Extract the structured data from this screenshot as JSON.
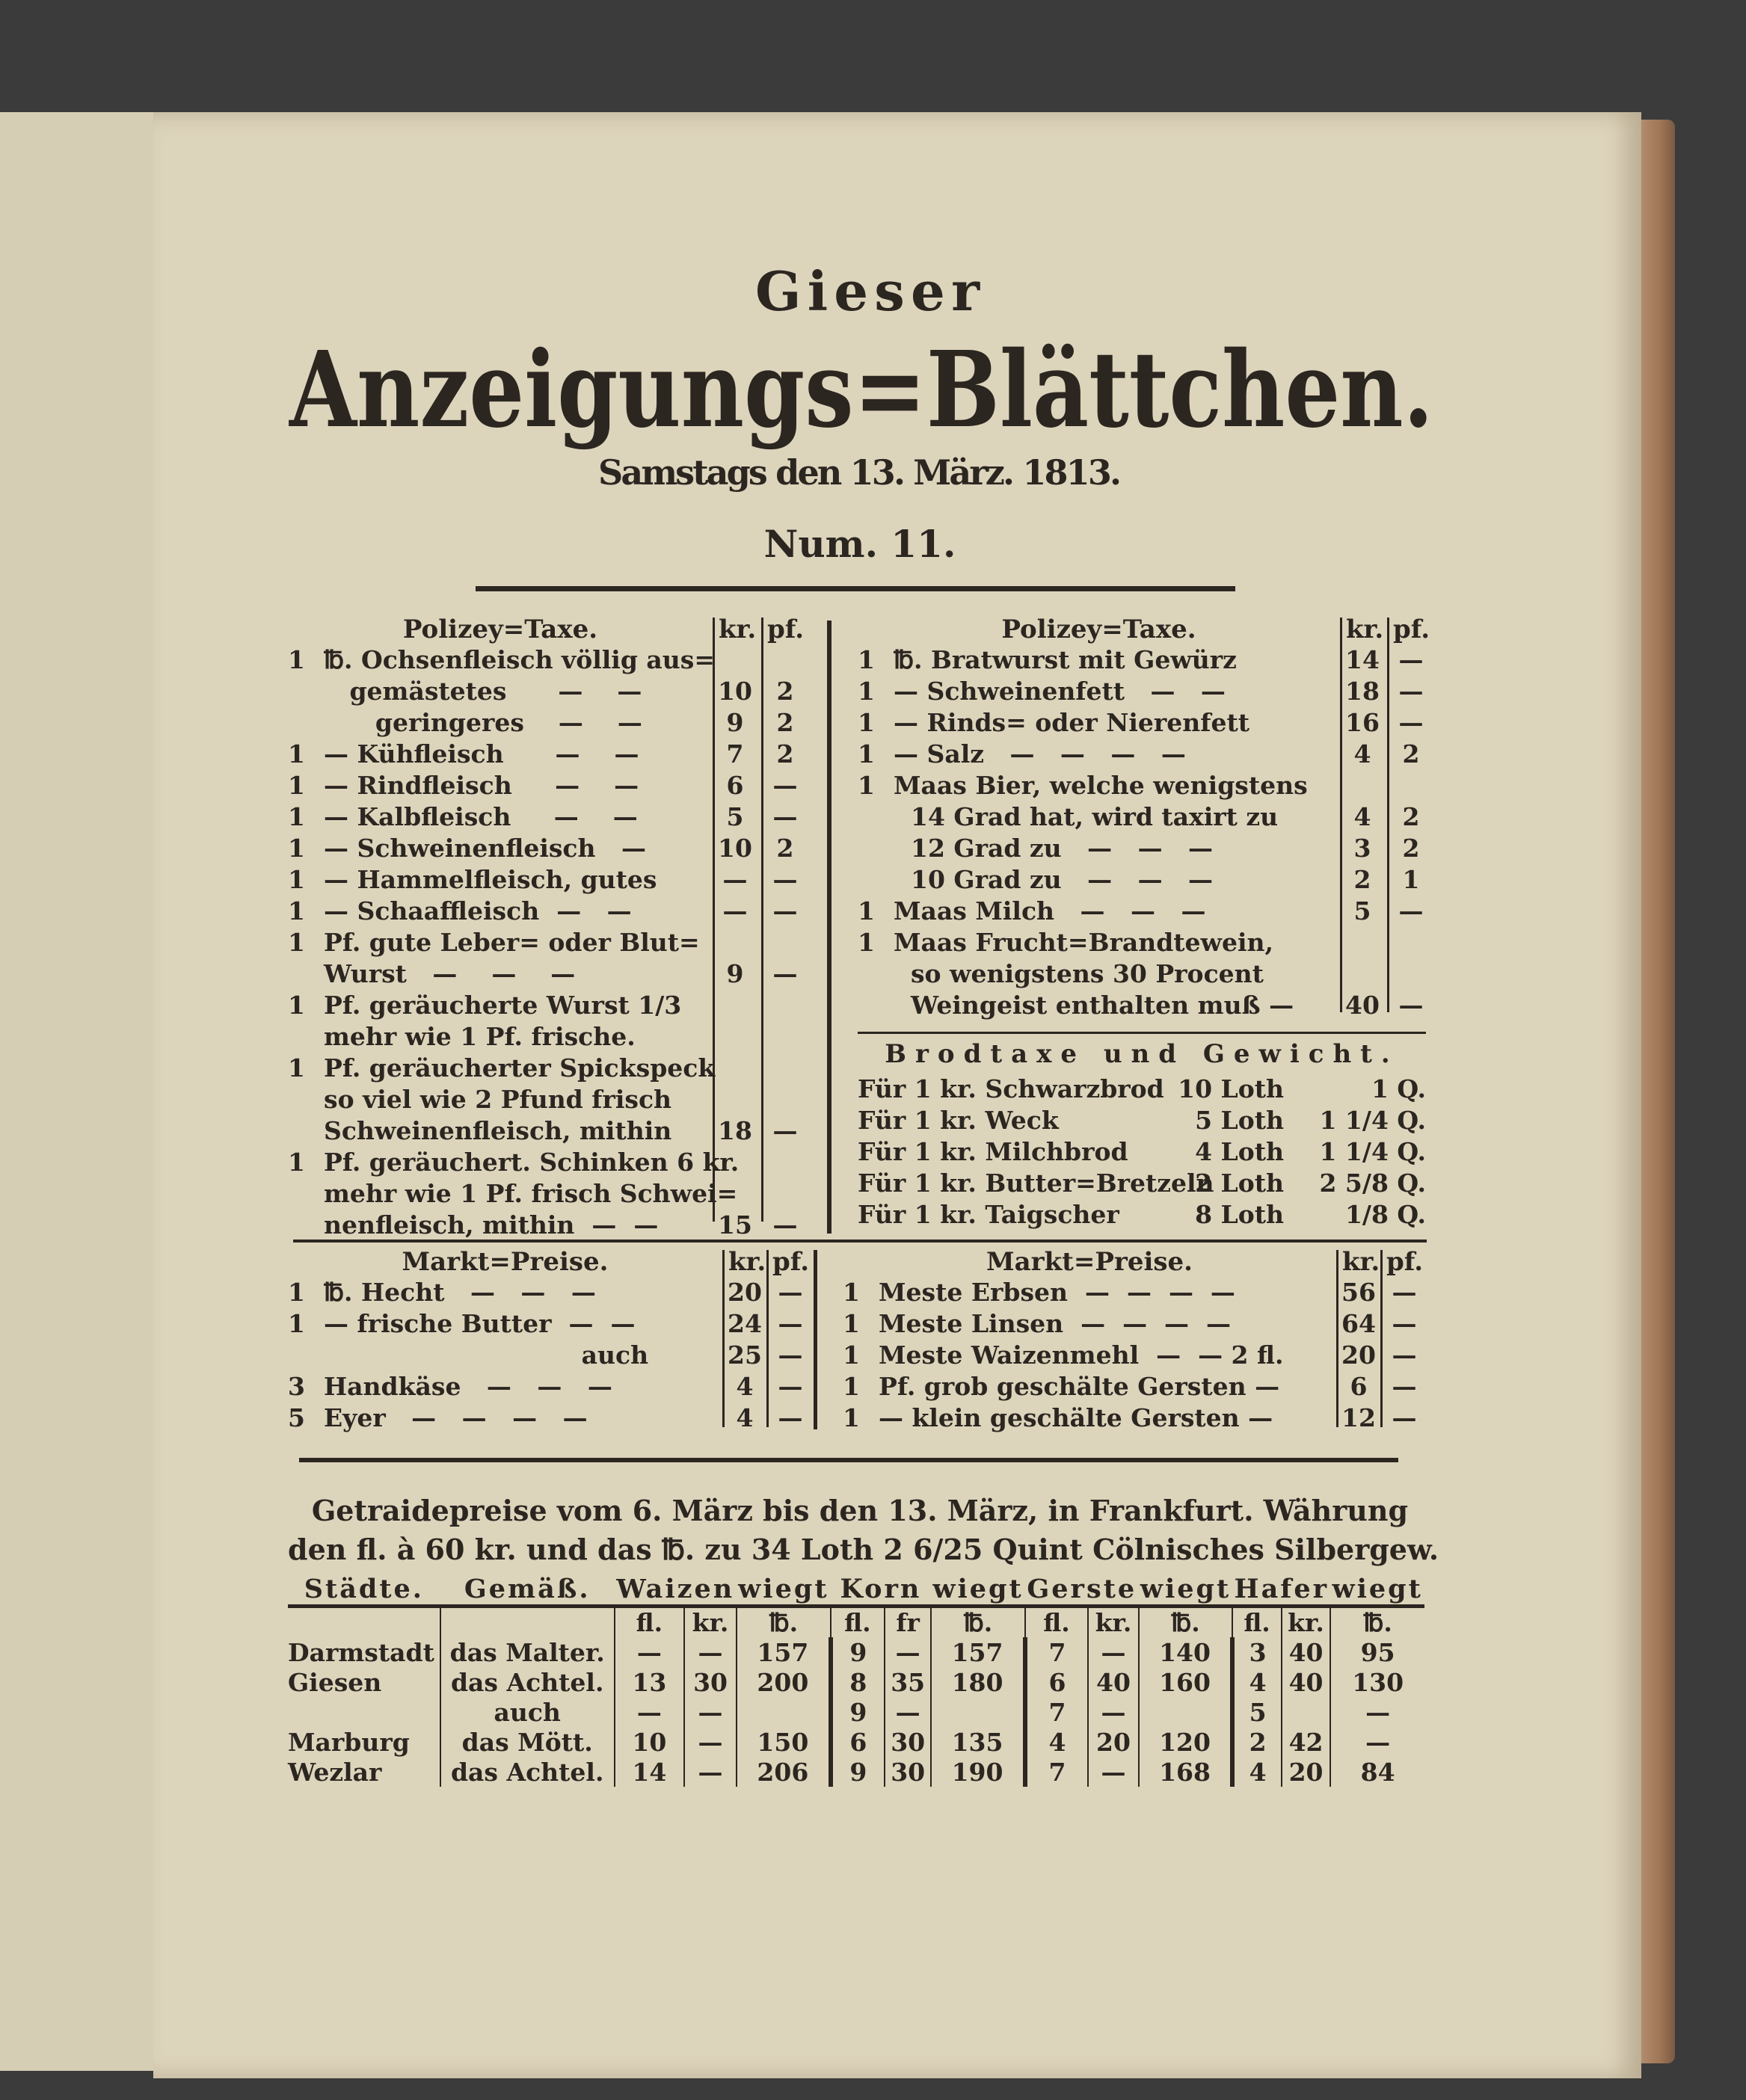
{
  "masthead": {
    "line1": "Gieser",
    "line2": "Anzeigungs=Blättchen.",
    "date": "Samstags den 13. März. 1813.",
    "number": "Num. 11."
  },
  "polizey_left": {
    "title": "Polizey=Taxe.",
    "col_kr": "kr.",
    "col_pf": "pf.",
    "rows": [
      {
        "q": "1",
        "t": "℔. Ochsenfleisch völlig aus=",
        "kr": "",
        "pf": ""
      },
      {
        "q": "",
        "t": "   gemästetes      —    —",
        "kr": "10",
        "pf": "2"
      },
      {
        "q": "",
        "t": "      geringeres    —    —",
        "kr": "9",
        "pf": "2"
      },
      {
        "q": "1",
        "t": "— Kühfleisch      —    —",
        "kr": "7",
        "pf": "2"
      },
      {
        "q": "1",
        "t": "— Rindfleisch     —    —",
        "kr": "6",
        "pf": "—"
      },
      {
        "q": "1",
        "t": "— Kalbfleisch     —    —",
        "kr": "5",
        "pf": "—"
      },
      {
        "q": "1",
        "t": "— Schweinenfleisch   —",
        "kr": "10",
        "pf": "2"
      },
      {
        "q": "1",
        "t": "— Hammelfleisch, gutes",
        "kr": "—",
        "pf": "—"
      },
      {
        "q": "1",
        "t": "— Schaaffleisch  —   —",
        "kr": "—",
        "pf": "—"
      },
      {
        "q": "1",
        "t": "Pf. gute Leber= oder Blut=",
        "kr": "",
        "pf": ""
      },
      {
        "q": "",
        "t": "Wurst   —    —    —",
        "kr": "9",
        "pf": "—"
      },
      {
        "q": "1",
        "t": "Pf. geräucherte Wurst 1/3",
        "kr": "",
        "pf": ""
      },
      {
        "q": "",
        "t": "mehr wie 1 Pf. frische.",
        "kr": "",
        "pf": ""
      },
      {
        "q": "1",
        "t": "Pf. geräucherter Spickspeck",
        "kr": "",
        "pf": ""
      },
      {
        "q": "",
        "t": "so viel wie 2 Pfund frisch",
        "kr": "",
        "pf": ""
      },
      {
        "q": "",
        "t": "Schweinenfleisch, mithin",
        "kr": "18",
        "pf": "—"
      },
      {
        "q": "1",
        "t": "Pf. geräuchert. Schinken 6 kr.",
        "kr": "",
        "pf": ""
      },
      {
        "q": "",
        "t": "mehr wie 1 Pf. frisch Schwei=",
        "kr": "",
        "pf": ""
      },
      {
        "q": "",
        "t": "nenfleisch, mithin  —  —",
        "kr": "15",
        "pf": "—"
      }
    ]
  },
  "polizey_right": {
    "title": "Polizey=Taxe.",
    "col_kr": "kr.",
    "col_pf": "pf.",
    "rows": [
      {
        "q": "1",
        "t": "℔. Bratwurst mit Gewürz",
        "kr": "14",
        "pf": "—"
      },
      {
        "q": "1",
        "t": "— Schweinenfett   —   —",
        "kr": "18",
        "pf": "—"
      },
      {
        "q": "1",
        "t": "— Rinds= oder Nierenfett",
        "kr": "16",
        "pf": "—"
      },
      {
        "q": "1",
        "t": "— Salz   —   —   —   —",
        "kr": "4",
        "pf": "2"
      },
      {
        "q": "1",
        "t": "Maas Bier, welche wenigstens",
        "kr": "",
        "pf": ""
      },
      {
        "q": "",
        "t": "  14 Grad hat, wird taxirt zu",
        "kr": "4",
        "pf": "2"
      },
      {
        "q": "",
        "t": "  12 Grad zu   —   —   —",
        "kr": "3",
        "pf": "2"
      },
      {
        "q": "",
        "t": "  10 Grad zu   —   —   —",
        "kr": "2",
        "pf": "1"
      },
      {
        "q": "1",
        "t": "Maas Milch   —   —   —",
        "kr": "5",
        "pf": "—"
      },
      {
        "q": "1",
        "t": "Maas Frucht=Brandtewein,",
        "kr": "",
        "pf": ""
      },
      {
        "q": "",
        "t": "  so wenigstens 30 Procent",
        "kr": "",
        "pf": ""
      },
      {
        "q": "",
        "t": "  Weingeist enthalten muß —",
        "kr": "40",
        "pf": "—"
      }
    ]
  },
  "brodtaxe": {
    "title": "Brodtaxe und Gewicht.",
    "rows": [
      {
        "t": "Für 1 kr. Schwarzbrod",
        "loth": "10 Loth",
        "q": "1 Q."
      },
      {
        "t": "Für 1 kr. Weck",
        "loth": "5 Loth",
        "q": "1 1/4 Q."
      },
      {
        "t": "Für 1 kr. Milchbrod",
        "loth": "4 Loth",
        "q": "1 1/4 Q."
      },
      {
        "t": "Für 1 kr. Butter=Bretzeln",
        "loth": "2 Loth",
        "q": "2 5/8 Q."
      },
      {
        "t": "Für 1 kr. Taigscher",
        "loth": "8 Loth",
        "q": "1/8 Q."
      }
    ]
  },
  "markt_left": {
    "title": "Markt=Preise.",
    "col_kr": "kr.",
    "col_pf": "pf.",
    "rows": [
      {
        "q": "1",
        "t": "℔. Hecht   —   —   —",
        "kr": "20",
        "pf": "—"
      },
      {
        "q": "1",
        "t": "— frische Butter  —  —",
        "kr": "24",
        "pf": "—"
      },
      {
        "q": "",
        "t": "                              auch",
        "kr": "25",
        "pf": "—"
      },
      {
        "q": "3",
        "t": "Handkäse   —   —   —",
        "kr": "4",
        "pf": "—"
      },
      {
        "q": "5",
        "t": "Eyer   —   —   —   —",
        "kr": "4",
        "pf": "—"
      }
    ]
  },
  "markt_right": {
    "title": "Markt=Preise.",
    "col_kr": "kr.",
    "col_pf": "pf.",
    "rows": [
      {
        "q": "1",
        "t": "Meste Erbsen  —  —  —  —",
        "kr": "56",
        "pf": "—"
      },
      {
        "q": "1",
        "t": "Meste Linsen  —  —  —  —",
        "kr": "64",
        "pf": "—"
      },
      {
        "q": "1",
        "t": "Meste Waizenmehl  —  — 2 fl.",
        "kr": "20",
        "pf": "—"
      },
      {
        "q": "1",
        "t": "Pf. grob geschälte Gersten —",
        "kr": "6",
        "pf": "—"
      },
      {
        "q": "1",
        "t": "— klein geschälte Gersten —",
        "kr": "12",
        "pf": "—"
      }
    ]
  },
  "getraide": {
    "intro1": "Getraidepreise vom 6. März bis den 13. März, in Frankfurt. Währung",
    "intro2": "den fl. à 60 kr. und das ℔. zu 34 Loth 2 6/25 Quint Cölnisches Silbergew.",
    "headers": [
      "Städte.",
      "Gemäß.",
      "Waizen",
      "wiegt",
      "Korn",
      "wiegt",
      "Gerste",
      "wiegt",
      "Hafer",
      "wiegt"
    ],
    "units": [
      "",
      "",
      "fl.",
      "kr.",
      "℔.",
      "fl.",
      "fr",
      "℔.",
      "fl.",
      "kr.",
      "℔.",
      "fl.",
      "kr.",
      "℔."
    ],
    "rows": [
      [
        "Darmstadt",
        "das Malter.",
        "—",
        "—",
        "157",
        "9",
        "—",
        "157",
        "7",
        "—",
        "140",
        "3",
        "40",
        "95"
      ],
      [
        "Giesen",
        "das Achtel.",
        "13",
        "30",
        "200",
        "8",
        "35",
        "180",
        "6",
        "40",
        "160",
        "4",
        "40",
        "130"
      ],
      [
        "",
        "auch",
        "—",
        "—",
        "",
        "9",
        "—",
        "",
        "7",
        "—",
        "",
        "5",
        "",
        "—"
      ],
      [
        "Marburg",
        "das Mött.",
        "10",
        "—",
        "150",
        "6",
        "30",
        "135",
        "4",
        "20",
        "120",
        "2",
        "42",
        "—"
      ],
      [
        "Wezlar",
        "das Achtel.",
        "14",
        "—",
        "206",
        "9",
        "30",
        "190",
        "7",
        "—",
        "168",
        "4",
        "20",
        "84"
      ]
    ]
  }
}
